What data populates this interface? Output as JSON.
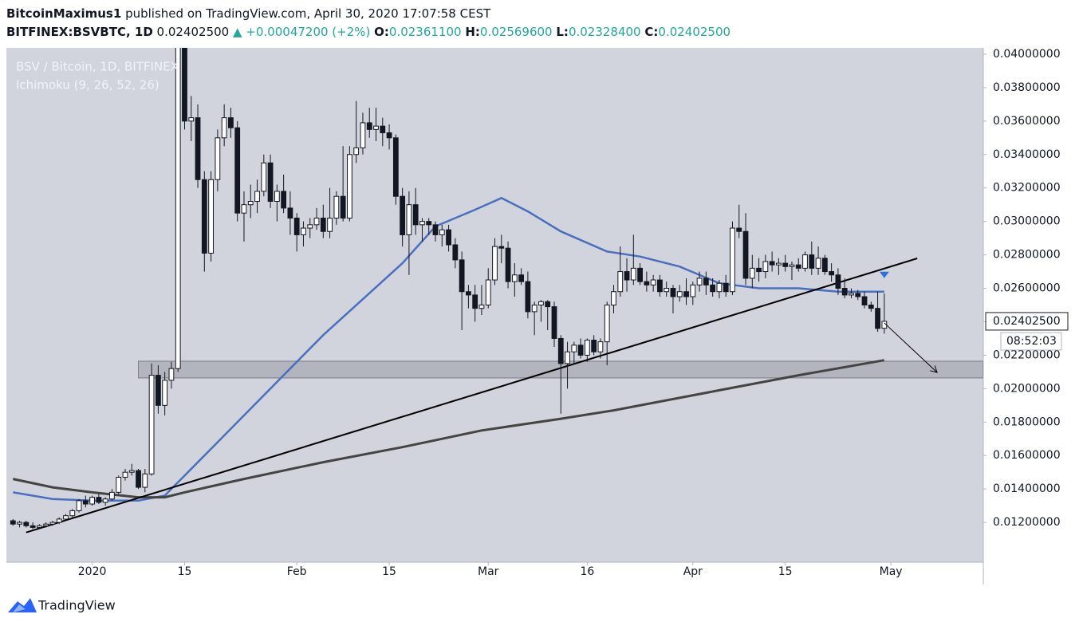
{
  "header": {
    "author": "BitcoinMaximus1",
    "published": "published on TradingView.com, April 30, 2020 17:07:58 CEST",
    "symbol": "BITFINEX:BSVBTC, 1D",
    "last": "0.02402500",
    "change": "▲ +0.00047200 (+2%)",
    "o_label": "O:",
    "o": "0.02361100",
    "h_label": "H:",
    "h": "0.02569600",
    "l_label": "L:",
    "l": "0.02328400",
    "c_label": "C:",
    "c": "0.02402500"
  },
  "footer": {
    "brand": "TradingView"
  },
  "chart_data": {
    "type": "candlestick",
    "title": "BSV / Bitcoin, 1D, BITFINEX",
    "subtitle": "Ichimoku (9, 26, 52, 26)",
    "up_color": "#ffffff",
    "down_color": "#131722",
    "wick_color": "#131722",
    "xlim": [
      "2019-12-19",
      "2020-05-15"
    ],
    "ylim": [
      0.00962,
      0.04038
    ],
    "xticks": [
      {
        "value": "2020-01-01",
        "label": "2020"
      },
      {
        "value": "2020-01-15",
        "label": "15"
      },
      {
        "value": "2020-02-01",
        "label": "Feb"
      },
      {
        "value": "2020-02-15",
        "label": "15"
      },
      {
        "value": "2020-03-01",
        "label": "Mar"
      },
      {
        "value": "2020-03-16",
        "label": "16"
      },
      {
        "value": "2020-04-01",
        "label": "Apr"
      },
      {
        "value": "2020-04-15",
        "label": "15"
      },
      {
        "value": "2020-05-01",
        "label": "May"
      }
    ],
    "yticks": [
      {
        "value": 0.012,
        "label": "0.01200000"
      },
      {
        "value": 0.014,
        "label": "0.01400000"
      },
      {
        "value": 0.016,
        "label": "0.01600000"
      },
      {
        "value": 0.018,
        "label": "0.01800000"
      },
      {
        "value": 0.02,
        "label": "0.02000000"
      },
      {
        "value": 0.022,
        "label": "0.02200000"
      },
      {
        "value": 0.024,
        "label": "0.02400000"
      },
      {
        "value": 0.026,
        "label": "0.02600000"
      },
      {
        "value": 0.028,
        "label": "0.02800000"
      },
      {
        "value": 0.03,
        "label": "0.03000000"
      },
      {
        "value": 0.032,
        "label": "0.03200000"
      },
      {
        "value": 0.034,
        "label": "0.03400000"
      },
      {
        "value": 0.036,
        "label": "0.03600000"
      },
      {
        "value": 0.038,
        "label": "0.03800000"
      },
      {
        "value": 0.04,
        "label": "0.04000000"
      }
    ],
    "grid": false,
    "x": [
      "2019-12-20",
      "2019-12-21",
      "2019-12-22",
      "2019-12-23",
      "2019-12-24",
      "2019-12-25",
      "2019-12-26",
      "2019-12-27",
      "2019-12-28",
      "2019-12-29",
      "2019-12-30",
      "2019-12-31",
      "2020-01-01",
      "2020-01-02",
      "2020-01-03",
      "2020-01-04",
      "2020-01-05",
      "2020-01-06",
      "2020-01-07",
      "2020-01-08",
      "2020-01-09",
      "2020-01-10",
      "2020-01-11",
      "2020-01-12",
      "2020-01-13",
      "2020-01-14",
      "2020-01-15",
      "2020-01-16",
      "2020-01-17",
      "2020-01-18",
      "2020-01-19",
      "2020-01-20",
      "2020-01-21",
      "2020-01-22",
      "2020-01-23",
      "2020-01-24",
      "2020-01-25",
      "2020-01-26",
      "2020-01-27",
      "2020-01-28",
      "2020-01-29",
      "2020-01-30",
      "2020-01-31",
      "2020-02-01",
      "2020-02-02",
      "2020-02-03",
      "2020-02-04",
      "2020-02-05",
      "2020-02-06",
      "2020-02-07",
      "2020-02-08",
      "2020-02-09",
      "2020-02-10",
      "2020-02-11",
      "2020-02-12",
      "2020-02-13",
      "2020-02-14",
      "2020-02-15",
      "2020-02-16",
      "2020-02-17",
      "2020-02-18",
      "2020-02-19",
      "2020-02-20",
      "2020-02-21",
      "2020-02-22",
      "2020-02-23",
      "2020-02-24",
      "2020-02-25",
      "2020-02-26",
      "2020-02-27",
      "2020-02-28",
      "2020-02-29",
      "2020-03-01",
      "2020-03-02",
      "2020-03-03",
      "2020-03-04",
      "2020-03-05",
      "2020-03-06",
      "2020-03-07",
      "2020-03-08",
      "2020-03-09",
      "2020-03-10",
      "2020-03-11",
      "2020-03-12",
      "2020-03-13",
      "2020-03-14",
      "2020-03-15",
      "2020-03-16",
      "2020-03-17",
      "2020-03-18",
      "2020-03-19",
      "2020-03-20",
      "2020-03-21",
      "2020-03-22",
      "2020-03-23",
      "2020-03-24",
      "2020-03-25",
      "2020-03-26",
      "2020-03-27",
      "2020-03-28",
      "2020-03-29",
      "2020-03-30",
      "2020-03-31",
      "2020-04-01",
      "2020-04-02",
      "2020-04-03",
      "2020-04-04",
      "2020-04-05",
      "2020-04-06",
      "2020-04-07",
      "2020-04-08",
      "2020-04-09",
      "2020-04-10",
      "2020-04-11",
      "2020-04-12",
      "2020-04-13",
      "2020-04-14",
      "2020-04-15",
      "2020-04-16",
      "2020-04-17",
      "2020-04-18",
      "2020-04-19",
      "2020-04-20",
      "2020-04-21",
      "2020-04-22",
      "2020-04-23",
      "2020-04-24",
      "2020-04-25",
      "2020-04-26",
      "2020-04-27",
      "2020-04-28",
      "2020-04-29",
      "2020-04-30"
    ],
    "ohlc": [
      [
        0.0121,
        0.0122,
        0.0118,
        0.0119
      ],
      [
        0.0119,
        0.0121,
        0.0117,
        0.012
      ],
      [
        0.012,
        0.0121,
        0.0117,
        0.0118
      ],
      [
        0.0118,
        0.012,
        0.0116,
        0.0117
      ],
      [
        0.0117,
        0.0119,
        0.0116,
        0.0118
      ],
      [
        0.0118,
        0.012,
        0.0117,
        0.0119
      ],
      [
        0.0119,
        0.0121,
        0.0118,
        0.012
      ],
      [
        0.012,
        0.0123,
        0.0119,
        0.0122
      ],
      [
        0.0122,
        0.0125,
        0.0121,
        0.0124
      ],
      [
        0.0124,
        0.0128,
        0.0123,
        0.0127
      ],
      [
        0.0127,
        0.0134,
        0.0126,
        0.0133
      ],
      [
        0.0133,
        0.0136,
        0.0129,
        0.0131
      ],
      [
        0.0131,
        0.0136,
        0.013,
        0.0135
      ],
      [
        0.0135,
        0.0137,
        0.0131,
        0.0132
      ],
      [
        0.0132,
        0.0135,
        0.013,
        0.0134
      ],
      [
        0.0134,
        0.014,
        0.0133,
        0.0138
      ],
      [
        0.0138,
        0.0148,
        0.0137,
        0.0147
      ],
      [
        0.0147,
        0.0152,
        0.0145,
        0.015
      ],
      [
        0.015,
        0.0155,
        0.0148,
        0.0151
      ],
      [
        0.0151,
        0.0152,
        0.014,
        0.0141
      ],
      [
        0.0141,
        0.0152,
        0.0138,
        0.0149
      ],
      [
        0.0149,
        0.0215,
        0.0148,
        0.0208
      ],
      [
        0.0208,
        0.0214,
        0.0185,
        0.019
      ],
      [
        0.019,
        0.021,
        0.0184,
        0.0205
      ],
      [
        0.0205,
        0.0216,
        0.02,
        0.0212
      ],
      [
        0.0212,
        0.044,
        0.021,
        0.0405
      ],
      [
        0.0405,
        0.042,
        0.0355,
        0.036
      ],
      [
        0.036,
        0.0375,
        0.0348,
        0.0362
      ],
      [
        0.0362,
        0.037,
        0.032,
        0.0325
      ],
      [
        0.0325,
        0.033,
        0.027,
        0.0281
      ],
      [
        0.0281,
        0.033,
        0.0276,
        0.0325
      ],
      [
        0.0325,
        0.0355,
        0.0318,
        0.035
      ],
      [
        0.035,
        0.037,
        0.0345,
        0.0362
      ],
      [
        0.0362,
        0.0368,
        0.035,
        0.0356
      ],
      [
        0.0356,
        0.036,
        0.03,
        0.0305
      ],
      [
        0.0305,
        0.0318,
        0.0288,
        0.031
      ],
      [
        0.031,
        0.0322,
        0.0302,
        0.0312
      ],
      [
        0.0312,
        0.0325,
        0.0305,
        0.0318
      ],
      [
        0.0318,
        0.034,
        0.0315,
        0.0335
      ],
      [
        0.0335,
        0.034,
        0.0308,
        0.0312
      ],
      [
        0.0312,
        0.0322,
        0.03,
        0.0318
      ],
      [
        0.0318,
        0.0328,
        0.0305,
        0.0308
      ],
      [
        0.0308,
        0.0318,
        0.0292,
        0.0302
      ],
      [
        0.0302,
        0.0305,
        0.0282,
        0.0292
      ],
      [
        0.0292,
        0.03,
        0.0285,
        0.0296
      ],
      [
        0.0296,
        0.0302,
        0.029,
        0.0298
      ],
      [
        0.0298,
        0.0308,
        0.0295,
        0.0302
      ],
      [
        0.0302,
        0.031,
        0.029,
        0.0294
      ],
      [
        0.0294,
        0.032,
        0.029,
        0.0302
      ],
      [
        0.0302,
        0.0318,
        0.0298,
        0.0315
      ],
      [
        0.0315,
        0.0345,
        0.03,
        0.0302
      ],
      [
        0.0302,
        0.0345,
        0.03,
        0.034
      ],
      [
        0.034,
        0.0372,
        0.0335,
        0.0344
      ],
      [
        0.0344,
        0.0365,
        0.034,
        0.0359
      ],
      [
        0.0359,
        0.0368,
        0.035,
        0.0355
      ],
      [
        0.0355,
        0.0368,
        0.0348,
        0.0357
      ],
      [
        0.0357,
        0.0362,
        0.0345,
        0.0353
      ],
      [
        0.0353,
        0.0358,
        0.0343,
        0.035
      ],
      [
        0.035,
        0.0352,
        0.031,
        0.0315
      ],
      [
        0.0315,
        0.032,
        0.0285,
        0.0292
      ],
      [
        0.0292,
        0.0318,
        0.0268,
        0.031
      ],
      [
        0.031,
        0.032,
        0.0292,
        0.0298
      ],
      [
        0.0298,
        0.0302,
        0.0288,
        0.03
      ],
      [
        0.03,
        0.0302,
        0.0292,
        0.0298
      ],
      [
        0.0298,
        0.03,
        0.0288,
        0.0292
      ],
      [
        0.0292,
        0.0298,
        0.0285,
        0.0295
      ],
      [
        0.0295,
        0.0298,
        0.0282,
        0.0286
      ],
      [
        0.0286,
        0.029,
        0.0272,
        0.0277
      ],
      [
        0.0277,
        0.0282,
        0.0235,
        0.0258
      ],
      [
        0.0258,
        0.0262,
        0.0248,
        0.0256
      ],
      [
        0.0256,
        0.0262,
        0.024,
        0.0248
      ],
      [
        0.0248,
        0.0262,
        0.0244,
        0.025
      ],
      [
        0.025,
        0.0272,
        0.0248,
        0.0265
      ],
      [
        0.0265,
        0.029,
        0.0262,
        0.0285
      ],
      [
        0.0285,
        0.0292,
        0.0275,
        0.0284
      ],
      [
        0.0284,
        0.0288,
        0.026,
        0.0264
      ],
      [
        0.0264,
        0.0275,
        0.0255,
        0.0268
      ],
      [
        0.0268,
        0.0272,
        0.0262,
        0.0264
      ],
      [
        0.0264,
        0.027,
        0.0242,
        0.0246
      ],
      [
        0.0246,
        0.0252,
        0.0232,
        0.025
      ],
      [
        0.025,
        0.0253,
        0.024,
        0.0252
      ],
      [
        0.0252,
        0.0253,
        0.0235,
        0.0249
      ],
      [
        0.0249,
        0.0252,
        0.0225,
        0.023
      ],
      [
        0.023,
        0.0232,
        0.0185,
        0.0215
      ],
      [
        0.0215,
        0.0228,
        0.02,
        0.0222
      ],
      [
        0.0222,
        0.0228,
        0.0215,
        0.0226
      ],
      [
        0.0226,
        0.023,
        0.0218,
        0.022
      ],
      [
        0.022,
        0.023,
        0.0216,
        0.0229
      ],
      [
        0.0229,
        0.0232,
        0.022,
        0.0222
      ],
      [
        0.0222,
        0.023,
        0.0218,
        0.0228
      ],
      [
        0.0228,
        0.0252,
        0.0214,
        0.025
      ],
      [
        0.025,
        0.0262,
        0.0245,
        0.0258
      ],
      [
        0.0258,
        0.0285,
        0.0255,
        0.027
      ],
      [
        0.027,
        0.0278,
        0.0258,
        0.0265
      ],
      [
        0.0265,
        0.0292,
        0.0262,
        0.0272
      ],
      [
        0.0272,
        0.0275,
        0.0262,
        0.0264
      ],
      [
        0.0264,
        0.027,
        0.0258,
        0.0262
      ],
      [
        0.0262,
        0.0268,
        0.0258,
        0.0265
      ],
      [
        0.0265,
        0.0268,
        0.0255,
        0.0258
      ],
      [
        0.0258,
        0.0264,
        0.0255,
        0.026
      ],
      [
        0.026,
        0.0262,
        0.0245,
        0.0255
      ],
      [
        0.0255,
        0.0262,
        0.0252,
        0.0258
      ],
      [
        0.0258,
        0.0266,
        0.025,
        0.0255
      ],
      [
        0.0255,
        0.0264,
        0.025,
        0.0262
      ],
      [
        0.0262,
        0.027,
        0.0258,
        0.0266
      ],
      [
        0.0266,
        0.027,
        0.0256,
        0.0262
      ],
      [
        0.0262,
        0.0266,
        0.0255,
        0.0258
      ],
      [
        0.0258,
        0.0265,
        0.0254,
        0.0263
      ],
      [
        0.0263,
        0.0268,
        0.0255,
        0.0258
      ],
      [
        0.0258,
        0.03,
        0.0256,
        0.0296
      ],
      [
        0.0296,
        0.031,
        0.029,
        0.0294
      ],
      [
        0.0294,
        0.0305,
        0.0262,
        0.0266
      ],
      [
        0.0266,
        0.028,
        0.026,
        0.0272
      ],
      [
        0.0272,
        0.0278,
        0.0264,
        0.027
      ],
      [
        0.027,
        0.028,
        0.0266,
        0.0276
      ],
      [
        0.0276,
        0.0282,
        0.027,
        0.0274
      ],
      [
        0.0274,
        0.0278,
        0.0268,
        0.0275
      ],
      [
        0.0275,
        0.028,
        0.027,
        0.0273
      ],
      [
        0.0273,
        0.0276,
        0.0265,
        0.0274
      ],
      [
        0.0274,
        0.0278,
        0.027,
        0.0272
      ],
      [
        0.0272,
        0.0282,
        0.027,
        0.028
      ],
      [
        0.028,
        0.0288,
        0.0268,
        0.0272
      ],
      [
        0.0272,
        0.0285,
        0.0268,
        0.0278
      ],
      [
        0.0278,
        0.028,
        0.0268,
        0.027
      ],
      [
        0.027,
        0.0275,
        0.0264,
        0.0268
      ],
      [
        0.0268,
        0.0272,
        0.0256,
        0.026
      ],
      [
        0.026,
        0.0266,
        0.0254,
        0.0256
      ],
      [
        0.0256,
        0.026,
        0.0254,
        0.0257
      ],
      [
        0.0257,
        0.0259,
        0.0253,
        0.0255
      ],
      [
        0.0255,
        0.0258,
        0.0248,
        0.025
      ],
      [
        0.025,
        0.0252,
        0.0246,
        0.0248
      ],
      [
        0.0248,
        0.0258,
        0.0234,
        0.0236
      ],
      [
        0.02361,
        0.025696,
        0.023284,
        0.024025
      ]
    ],
    "lines": [
      {
        "color": "#4a6fc0",
        "width": 2.5,
        "x": [
          "2019-12-20",
          "2019-12-26",
          "2020-01-01",
          "2020-01-08",
          "2020-01-12",
          "2020-01-15",
          "2020-01-24",
          "2020-02-05",
          "2020-02-17",
          "2020-02-22",
          "2020-02-28",
          "2020-03-03",
          "2020-03-07",
          "2020-03-12",
          "2020-03-19",
          "2020-03-24",
          "2020-03-30",
          "2020-04-05",
          "2020-04-11",
          "2020-04-17",
          "2020-04-23",
          "2020-04-30"
        ],
        "values": [
          0.0138,
          0.0134,
          0.0133,
          0.0133,
          0.0136,
          0.0148,
          0.0184,
          0.0232,
          0.0275,
          0.0297,
          0.0307,
          0.0314,
          0.0306,
          0.0294,
          0.0282,
          0.0279,
          0.0273,
          0.0263,
          0.026,
          0.026,
          0.0258,
          0.0258
        ]
      },
      {
        "color": "#444444",
        "width": 3,
        "x": [
          "2019-12-20",
          "2019-12-26",
          "2020-01-01",
          "2020-01-08",
          "2020-01-12",
          "2020-01-15",
          "2020-01-24",
          "2020-02-05",
          "2020-02-17",
          "2020-02-29",
          "2020-03-12",
          "2020-03-20",
          "2020-04-05",
          "2020-04-17",
          "2020-04-30"
        ],
        "values": [
          0.0146,
          0.0141,
          0.0138,
          0.0135,
          0.0135,
          0.0138,
          0.0146,
          0.0156,
          0.0165,
          0.0175,
          0.0182,
          0.0187,
          0.0199,
          0.0208,
          0.0217
        ]
      },
      {
        "color": "#000000",
        "width": 2,
        "x": [
          "2019-12-22",
          "2020-05-05"
        ],
        "values": [
          0.0114,
          0.02779
        ]
      }
    ],
    "zone": {
      "color": "rgba(120,123,134,0.35)",
      "x": [
        "2020-01-08",
        "2020-05-15"
      ],
      "values": [
        0.02064,
        0.02164
      ]
    },
    "arrow": {
      "color": "#000000",
      "x": [
        "2020-04-30",
        "2020-05-08"
      ],
      "values": [
        0.02393,
        0.02097
      ]
    },
    "marker": {
      "color": "#2f6fe0",
      "x": "2020-04-30",
      "value": 0.0268
    },
    "price_label": "0.02402500",
    "price_value": 0.024025,
    "countdown": "08:52:03"
  }
}
